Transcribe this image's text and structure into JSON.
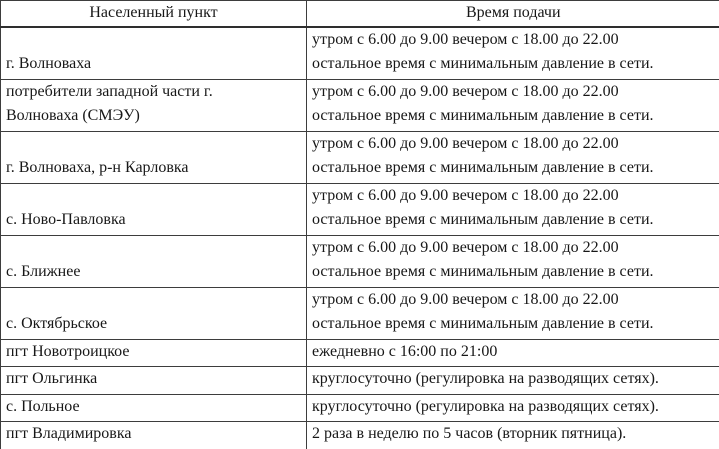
{
  "colors": {
    "background": "#ffffff",
    "text": "#171717",
    "border": "#3d3d3d"
  },
  "table": {
    "columns": [
      {
        "label": "Населенный пункт"
      },
      {
        "label": "Время подачи"
      }
    ],
    "rows": [
      {
        "settlement_lines": [
          "г. Волноваха"
        ],
        "schedule_lines": [
          "утром с 6.00 до 9.00 вечером с 18.00 до 22.00",
          "остальное время с минимальным давление в сети."
        ]
      },
      {
        "settlement_lines": [
          "потребители западной части г.",
          "Волноваха (СМЭУ)"
        ],
        "schedule_lines": [
          "утром с 6.00 до 9.00 вечером с 18.00 до 22.00",
          "остальное время с минимальным давление в сети."
        ]
      },
      {
        "settlement_lines": [
          "г. Волноваха, р-н Карловка"
        ],
        "schedule_lines": [
          "утром с 6.00 до 9.00 вечером с 18.00 до 22.00",
          "остальное время с минимальным давление в сети."
        ]
      },
      {
        "settlement_lines": [
          "с. Ново-Павловка"
        ],
        "schedule_lines": [
          "утром с 6.00 до 9.00 вечером с 18.00 до 22.00",
          "остальное время с минимальным давление в сети."
        ]
      },
      {
        "settlement_lines": [
          "с. Ближнее"
        ],
        "schedule_lines": [
          "утром с 6.00 до 9.00 вечером с 18.00 до 22.00",
          "остальное время с минимальным давление в сети."
        ]
      },
      {
        "settlement_lines": [
          "с. Октябрьское"
        ],
        "schedule_lines": [
          "утром с 6.00 до 9.00 вечером с 18.00 до 22.00",
          "остальное время с минимальным давление в сети."
        ]
      },
      {
        "settlement_lines": [
          "пгт Новотроицкое"
        ],
        "schedule_lines": [
          "ежедневно с 16:00 по 21:00"
        ]
      },
      {
        "settlement_lines": [
          "пгт Ольгинка"
        ],
        "schedule_lines": [
          "круглосуточно (регулировка на разводящих сетях)."
        ]
      },
      {
        "settlement_lines": [
          "с. Польное"
        ],
        "schedule_lines": [
          "круглосуточно (регулировка на разводящих сетях)."
        ]
      },
      {
        "settlement_lines": [
          "пгт Владимировка"
        ],
        "schedule_lines": [
          "2 раза в неделю по 5 часов (вторник пятница)."
        ]
      }
    ]
  }
}
